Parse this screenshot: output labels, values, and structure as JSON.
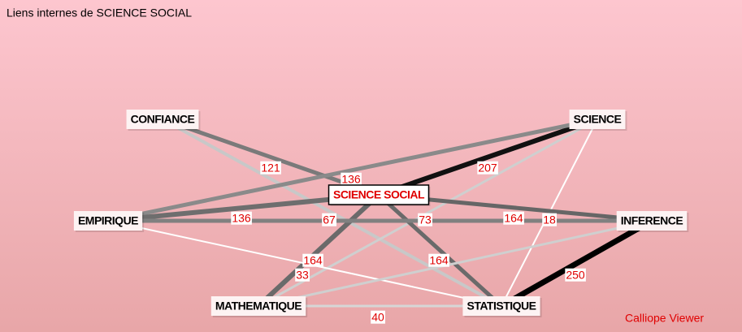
{
  "title": "Liens internes de SCIENCE SOCIAL",
  "footer": "Calliope Viewer",
  "nodes": [
    {
      "label": "CONFIANCE"
    },
    {
      "label": "SCIENCE"
    },
    {
      "label": "SCIENCE SOCIAL"
    },
    {
      "label": "EMPIRIQUE"
    },
    {
      "label": "INFERENCE"
    },
    {
      "label": "MATHEMATIQUE"
    },
    {
      "label": "STATISTIQUE"
    }
  ],
  "edges": [
    {
      "from": 0,
      "to": 2,
      "label": 136
    },
    {
      "from": 0,
      "to": 6,
      "label": 121
    },
    {
      "from": 1,
      "to": 2,
      "label": 207
    },
    {
      "from": 1,
      "to": 3
    },
    {
      "from": 1,
      "to": 5,
      "label": 33
    },
    {
      "from": 1,
      "to": 6,
      "label": 18
    },
    {
      "from": 3,
      "to": 2,
      "label": 136
    },
    {
      "from": 2,
      "to": 4,
      "label": 164
    },
    {
      "from": 2,
      "to": 5,
      "label": 67
    },
    {
      "from": 2,
      "to": 6,
      "label": 164
    },
    {
      "from": 3,
      "to": 6
    },
    {
      "from": 4,
      "to": 6,
      "label": 250
    },
    {
      "from": 5,
      "to": 6,
      "label": 40
    },
    {
      "from": 3,
      "to": 4,
      "label": 73
    },
    {
      "from": 4,
      "to": 5,
      "label": 164
    }
  ]
}
